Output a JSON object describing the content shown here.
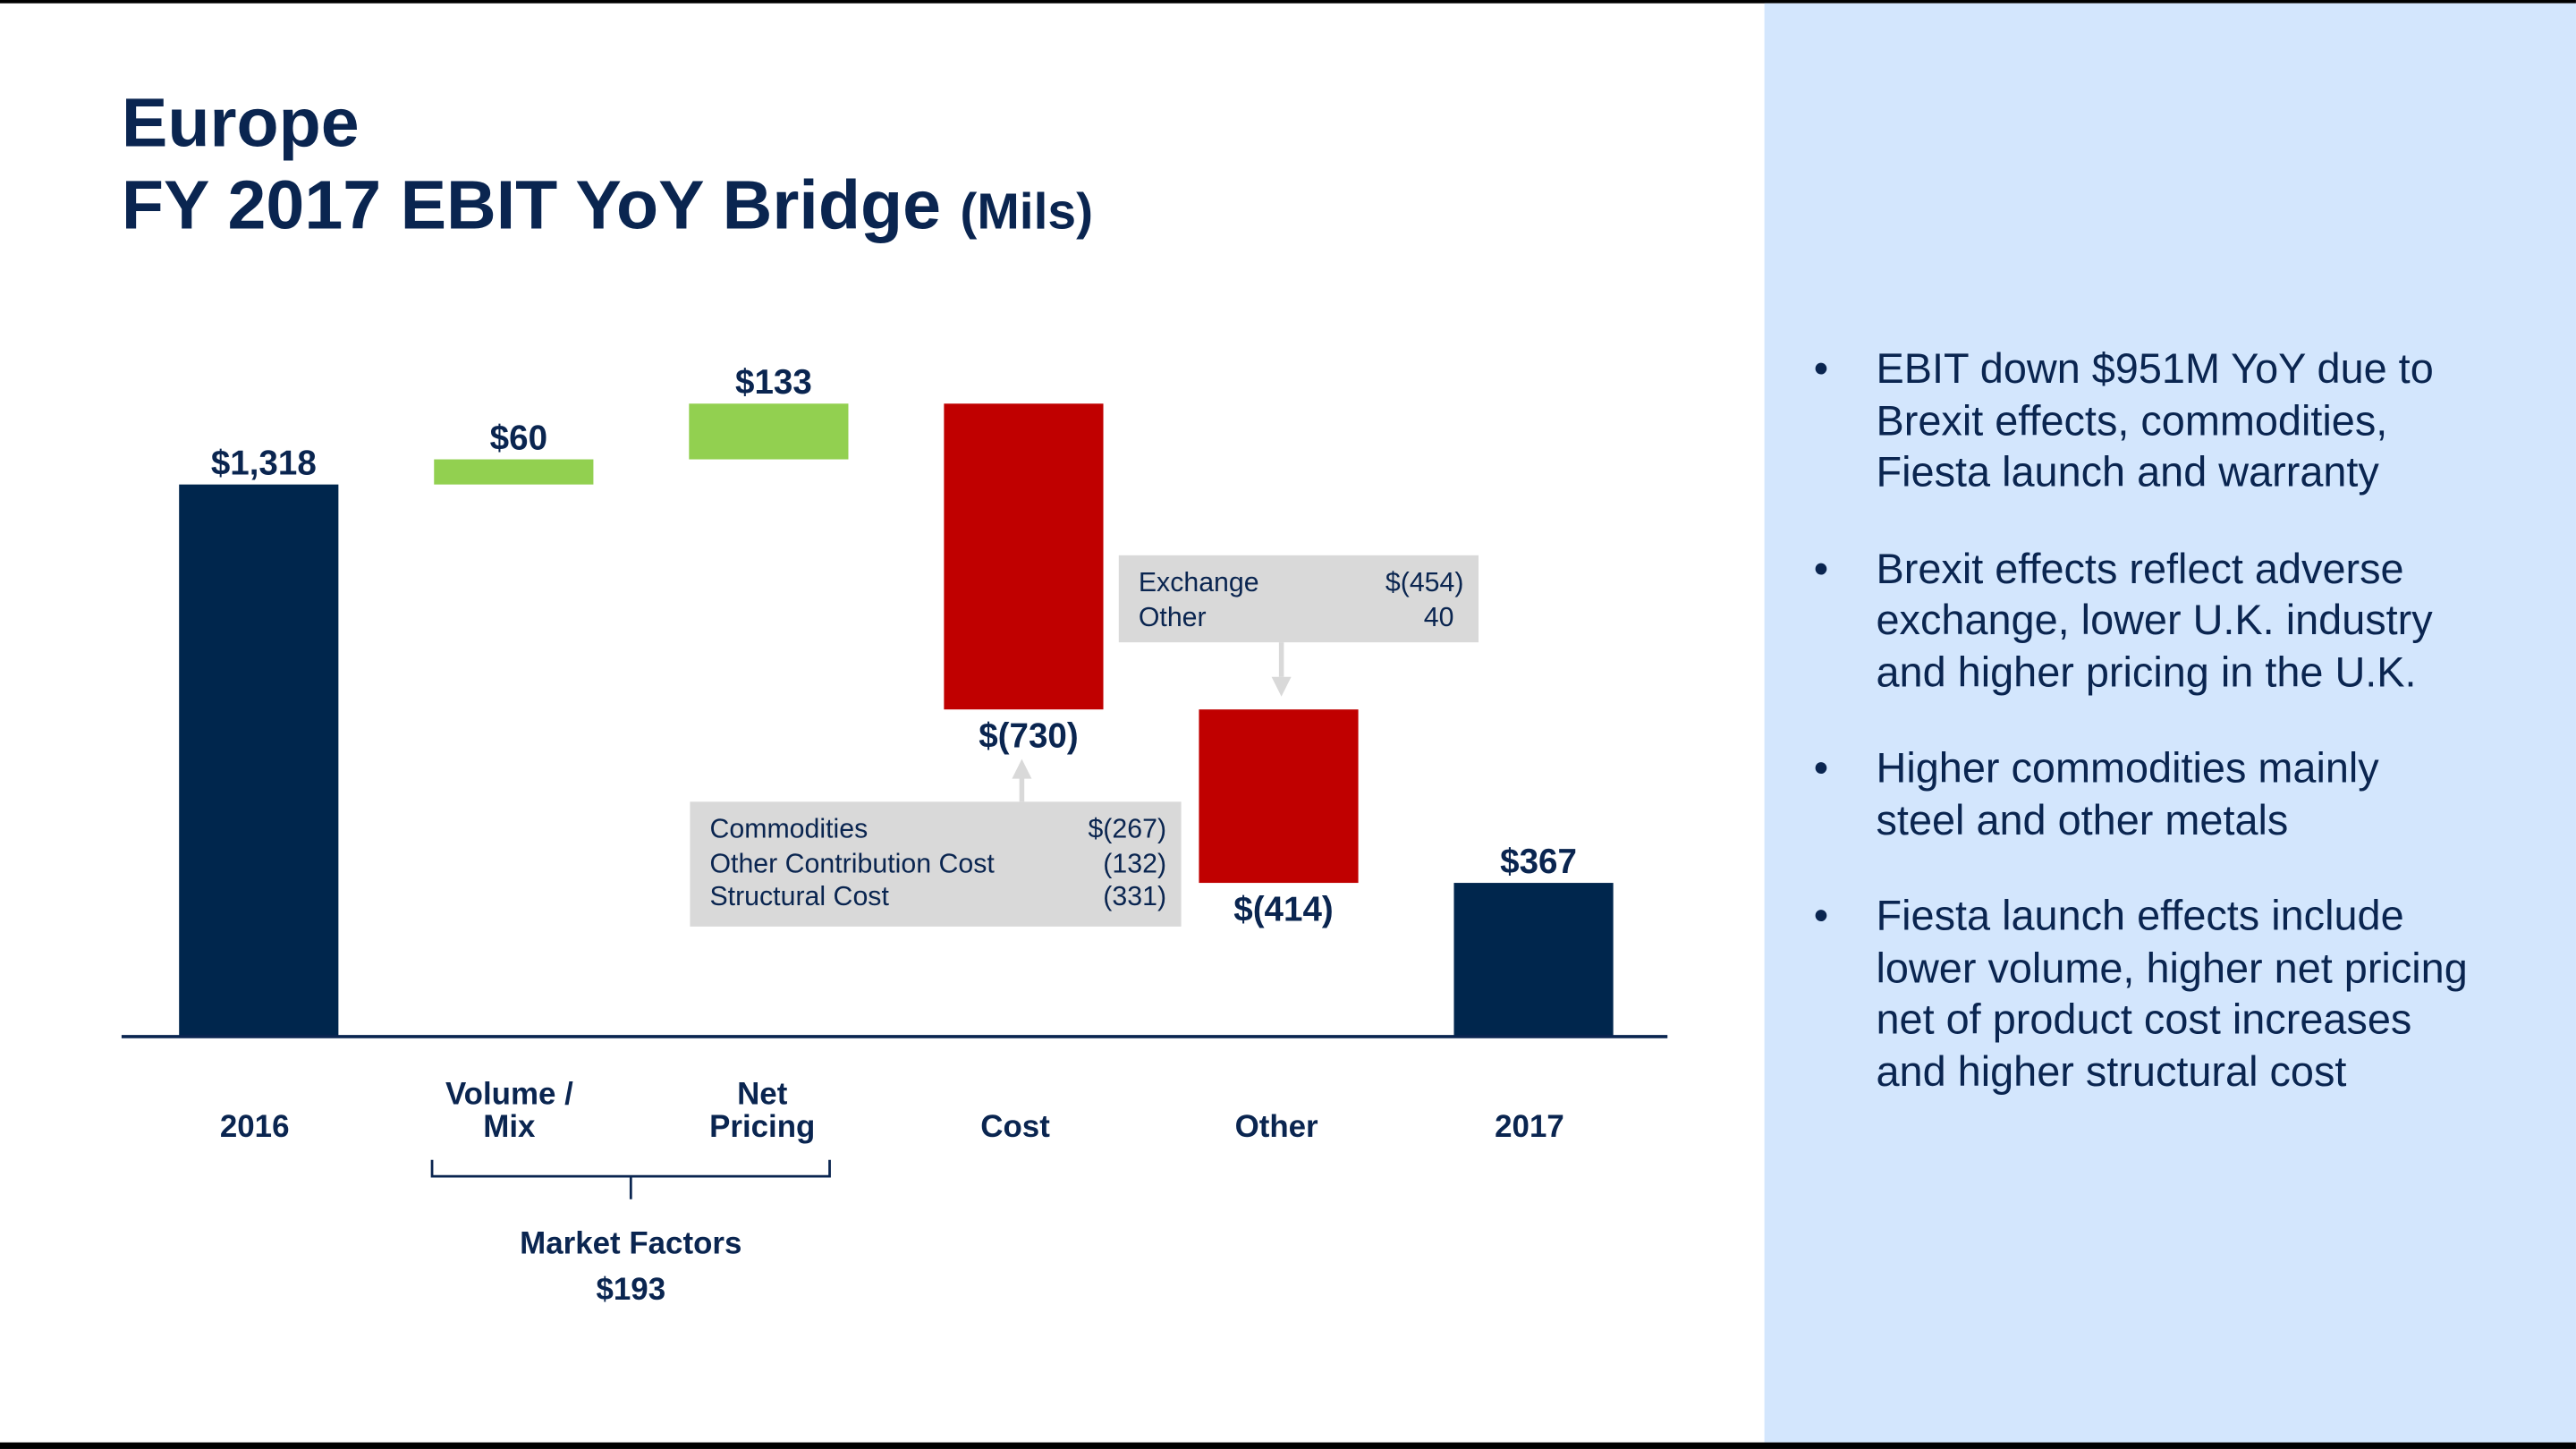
{
  "title": {
    "line1": "Europe",
    "line2": "FY 2017 EBIT YoY Bridge",
    "unit": "(Mils)"
  },
  "colors": {
    "total": "#00264d",
    "increase": "#92d050",
    "decrease": "#c00000",
    "panel": "#d3e6fd",
    "callout": "#d9d9d9"
  },
  "chart_data": {
    "type": "waterfall",
    "categories": [
      "2016",
      "Volume /\nMix",
      "Net\nPricing",
      "Cost",
      "Other",
      "2017"
    ],
    "values": [
      1318,
      60,
      133,
      -730,
      -414,
      367
    ],
    "kinds": [
      "total",
      "increase",
      "increase",
      "decrease",
      "decrease",
      "total"
    ],
    "data_labels": [
      "$1,318",
      "$60",
      "$133",
      "$(730)",
      "$(414)",
      "$367"
    ],
    "grid": false,
    "group": {
      "label": "Market Factors",
      "value": "$193",
      "spans": [
        "Volume /\nMix",
        "Net\nPricing"
      ]
    },
    "callouts": [
      {
        "target": "Cost",
        "rows": [
          {
            "label": "Commodities",
            "value": "$(267)"
          },
          {
            "label": "Other Contribution Cost",
            "value": "(132)"
          },
          {
            "label": "Structural Cost",
            "value": "(331)"
          }
        ]
      },
      {
        "target": "Other",
        "rows": [
          {
            "label": "Exchange",
            "value": "$(454)"
          },
          {
            "label": "Other",
            "value": "40"
          }
        ]
      }
    ]
  },
  "bullets": [
    {
      "lines": [
        "EBIT down $951M YoY due to",
        "Brexit effects, commodities,",
        "Fiesta launch and warranty"
      ]
    },
    {
      "lines": [
        "Brexit effects reflect adverse",
        "exchange, lower U.K. industry",
        "and higher pricing in the U.K."
      ]
    },
    {
      "lines": [
        "Higher commodities mainly",
        "steel and other metals"
      ]
    },
    {
      "lines": [
        "Fiesta launch effects include",
        "lower volume, higher net pricing",
        "net of product cost increases",
        "and higher structural cost"
      ]
    }
  ]
}
